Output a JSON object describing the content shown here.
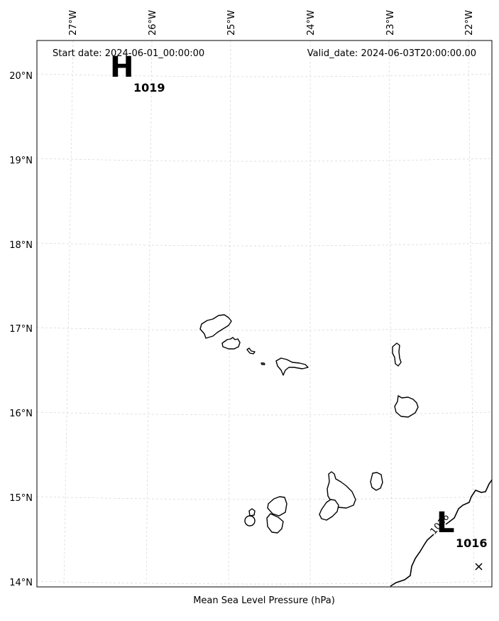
{
  "header": {
    "start_date": "Start date: 2024-06-01_00:00:00",
    "valid_date": "Valid_date: 2024-06-03T20:00:00.00"
  },
  "caption": "Mean Sea Level Pressure (hPa)",
  "lon_ticks": [
    "27°W",
    "26°W",
    "25°W",
    "24°W",
    "23°W",
    "22°W"
  ],
  "lat_ticks": [
    "20°N",
    "19°N",
    "18°N",
    "17°N",
    "16°N",
    "15°N",
    "14°N"
  ],
  "high_center": {
    "symbol": "H",
    "value": "1019"
  },
  "low_center": {
    "symbol": "L",
    "value": "1016"
  },
  "isobar_label": "1016",
  "colors": {
    "coast": "#000000",
    "grid": "#cccccc",
    "frame": "#000000"
  },
  "icons": {
    "low_marker": "cross-icon"
  }
}
